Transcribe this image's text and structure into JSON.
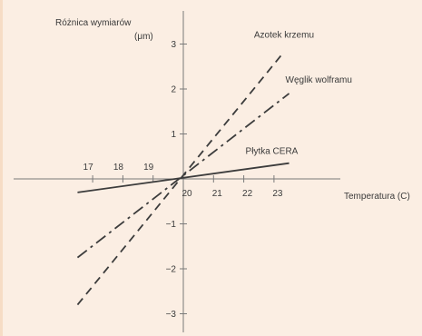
{
  "chart_data": {
    "type": "line",
    "ylabel": "Różnica wymiarów",
    "yunit": "(μm)",
    "xlabel": "Temperatura (C)",
    "xlim": [
      16.3,
      23.6
    ],
    "ylim": [
      -3.4,
      3.4
    ],
    "x_ticks": [
      17,
      18,
      19,
      20,
      21,
      22,
      23
    ],
    "y_ticks": [
      -3,
      -2,
      -1,
      1,
      2,
      3
    ],
    "series": [
      {
        "name": "Azotek krzemu",
        "style": "dashed",
        "x": [
          16.5,
          23.3
        ],
        "y": [
          -2.8,
          2.8
        ]
      },
      {
        "name": "Węglik wolframu",
        "style": "dashdot",
        "x": [
          16.5,
          23.5
        ],
        "y": [
          -1.75,
          1.9
        ]
      },
      {
        "name": "Płytka CERA",
        "style": "solid",
        "x": [
          16.5,
          23.5
        ],
        "y": [
          -0.3,
          0.35
        ]
      }
    ],
    "colors": {
      "line": "#3c3c3c",
      "axis": "#7a7a7a",
      "background": "#fbeee3"
    }
  }
}
